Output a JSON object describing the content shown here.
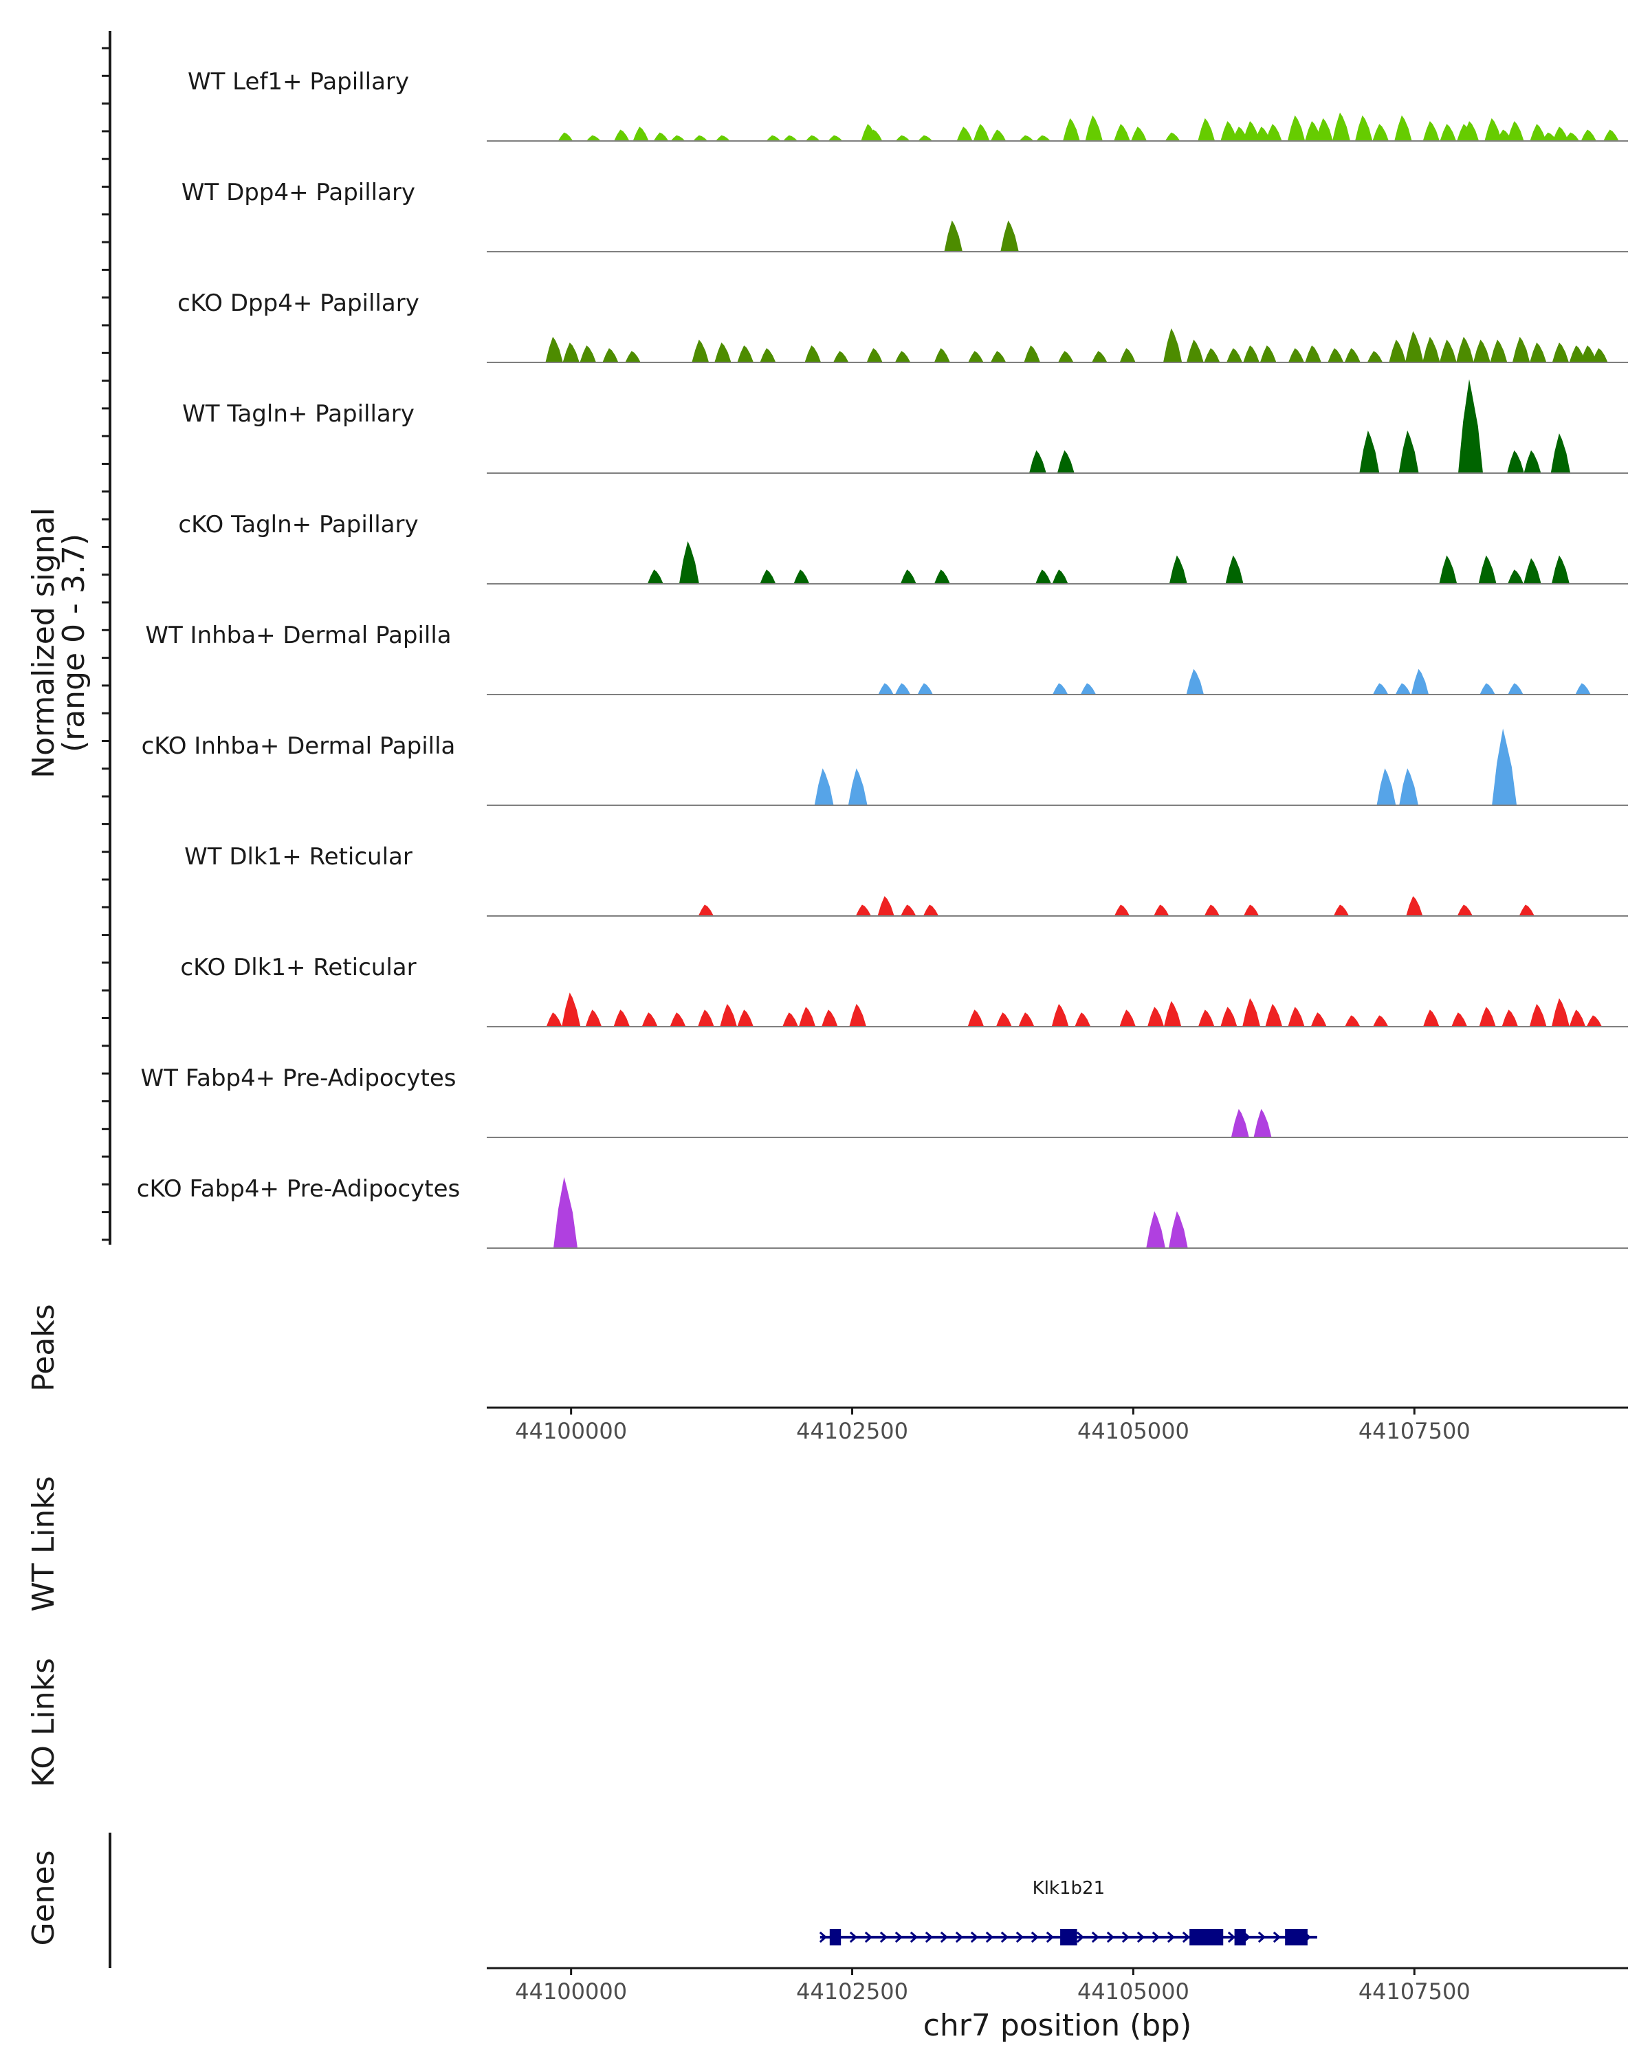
{
  "chart_data": {
    "type": "area",
    "title": "",
    "ylabel": "Normalized signal",
    "ylabel_range": "(range 0 - 3.7)",
    "ymax": 3.7,
    "xlabel": "chr7 position (bp)",
    "xlim": [
      44099250,
      44109400
    ],
    "xticks": [
      {
        "value": 44100000,
        "label": "44100000"
      },
      {
        "value": 44102500,
        "label": "44102500"
      },
      {
        "value": 44105000,
        "label": "44105000"
      },
      {
        "value": 44107500,
        "label": "44107500"
      }
    ],
    "tracks": [
      {
        "name": "WT Lef1+ Papillary",
        "color": "#66cc00",
        "peaks": [
          [
            44099950,
            0.3
          ],
          [
            44100200,
            0.2
          ],
          [
            44100450,
            0.4
          ],
          [
            44100620,
            0.5
          ],
          [
            44100800,
            0.3
          ],
          [
            44100950,
            0.2
          ],
          [
            44101150,
            0.2
          ],
          [
            44101350,
            0.2
          ],
          [
            44101800,
            0.2
          ],
          [
            44101950,
            0.2
          ],
          [
            44102150,
            0.2
          ],
          [
            44102350,
            0.2
          ],
          [
            44102650,
            0.6
          ],
          [
            44102700,
            0.4
          ],
          [
            44102950,
            0.2
          ],
          [
            44103150,
            0.2
          ],
          [
            44103500,
            0.5
          ],
          [
            44103650,
            0.6
          ],
          [
            44103800,
            0.4
          ],
          [
            44104050,
            0.2
          ],
          [
            44104200,
            0.2
          ],
          [
            44104450,
            0.8
          ],
          [
            44104650,
            0.9
          ],
          [
            44104900,
            0.6
          ],
          [
            44105050,
            0.5
          ],
          [
            44105350,
            0.3
          ],
          [
            44105650,
            0.8
          ],
          [
            44105850,
            0.7
          ],
          [
            44106050,
            0.7
          ],
          [
            44106250,
            0.6
          ],
          [
            44106450,
            0.9
          ],
          [
            44106700,
            0.8
          ],
          [
            44106850,
            1.0
          ],
          [
            44107050,
            0.9
          ],
          [
            44107200,
            0.6
          ],
          [
            44107400,
            0.9
          ],
          [
            44107650,
            0.7
          ],
          [
            44107800,
            0.6
          ],
          [
            44108000,
            0.7
          ],
          [
            44108200,
            0.8
          ],
          [
            44108400,
            0.7
          ],
          [
            44108600,
            0.6
          ],
          [
            44108800,
            0.5
          ],
          [
            44109050,
            0.4
          ],
          [
            44109250,
            0.4
          ],
          [
            44105950,
            0.5
          ],
          [
            44106150,
            0.5
          ],
          [
            44106600,
            0.7
          ],
          [
            44107950,
            0.6
          ],
          [
            44108300,
            0.4
          ],
          [
            44108700,
            0.3
          ],
          [
            44108900,
            0.3
          ]
        ]
      },
      {
        "name": "WT Dpp4+ Papillary",
        "color": "#4d8c00",
        "peaks": [
          [
            44103400,
            1.1
          ],
          [
            44103900,
            1.1
          ]
        ]
      },
      {
        "name": "cKO Dpp4+ Papillary",
        "color": "#4d8c00",
        "peaks": [
          [
            44099850,
            0.9
          ],
          [
            44100000,
            0.7
          ],
          [
            44100150,
            0.6
          ],
          [
            44100350,
            0.5
          ],
          [
            44100550,
            0.4
          ],
          [
            44101150,
            0.8
          ],
          [
            44101350,
            0.7
          ],
          [
            44101550,
            0.6
          ],
          [
            44101750,
            0.5
          ],
          [
            44102150,
            0.6
          ],
          [
            44102400,
            0.4
          ],
          [
            44102700,
            0.5
          ],
          [
            44102950,
            0.4
          ],
          [
            44103300,
            0.5
          ],
          [
            44103600,
            0.4
          ],
          [
            44103800,
            0.4
          ],
          [
            44104100,
            0.6
          ],
          [
            44104400,
            0.4
          ],
          [
            44104700,
            0.4
          ],
          [
            44104950,
            0.5
          ],
          [
            44105350,
            1.2
          ],
          [
            44105550,
            0.8
          ],
          [
            44105700,
            0.5
          ],
          [
            44105900,
            0.5
          ],
          [
            44106050,
            0.6
          ],
          [
            44106200,
            0.6
          ],
          [
            44106450,
            0.5
          ],
          [
            44106600,
            0.6
          ],
          [
            44106800,
            0.5
          ],
          [
            44106950,
            0.5
          ],
          [
            44107150,
            0.4
          ],
          [
            44107350,
            0.8
          ],
          [
            44107500,
            1.1
          ],
          [
            44107650,
            0.9
          ],
          [
            44107800,
            0.8
          ],
          [
            44107950,
            0.9
          ],
          [
            44108100,
            0.8
          ],
          [
            44108250,
            0.8
          ],
          [
            44108450,
            0.9
          ],
          [
            44108600,
            0.7
          ],
          [
            44108800,
            0.7
          ],
          [
            44108950,
            0.6
          ],
          [
            44109050,
            0.6
          ],
          [
            44109150,
            0.5
          ]
        ]
      },
      {
        "name": "WT Tagln+ Papillary",
        "color": "#006400",
        "peaks": [
          [
            44104150,
            0.8
          ],
          [
            44104400,
            0.8
          ],
          [
            44107100,
            1.5
          ],
          [
            44107450,
            1.5
          ],
          [
            44108000,
            3.3
          ],
          [
            44108400,
            0.8
          ],
          [
            44108550,
            0.8
          ],
          [
            44108800,
            1.4
          ]
        ]
      },
      {
        "name": "cKO Tagln+ Papillary",
        "color": "#006400",
        "peaks": [
          [
            44100750,
            0.5
          ],
          [
            44101050,
            1.5
          ],
          [
            44101750,
            0.5
          ],
          [
            44102050,
            0.5
          ],
          [
            44103000,
            0.5
          ],
          [
            44103300,
            0.5
          ],
          [
            44104200,
            0.5
          ],
          [
            44104350,
            0.5
          ],
          [
            44105400,
            1.0
          ],
          [
            44105900,
            1.0
          ],
          [
            44107800,
            1.0
          ],
          [
            44108150,
            1.0
          ],
          [
            44108400,
            0.5
          ],
          [
            44108550,
            0.9
          ],
          [
            44108800,
            1.0
          ]
        ]
      },
      {
        "name": "WT Inhba+ Dermal Papilla",
        "color": "#56a4e8",
        "peaks": [
          [
            44102800,
            0.4
          ],
          [
            44102950,
            0.4
          ],
          [
            44103150,
            0.4
          ],
          [
            44104350,
            0.4
          ],
          [
            44104600,
            0.4
          ],
          [
            44105550,
            0.9
          ],
          [
            44107200,
            0.4
          ],
          [
            44107400,
            0.4
          ],
          [
            44107550,
            0.9
          ],
          [
            44108150,
            0.4
          ],
          [
            44108400,
            0.4
          ],
          [
            44109000,
            0.4
          ]
        ]
      },
      {
        "name": "cKO Inhba+ Dermal Papilla",
        "color": "#56a4e8",
        "peaks": [
          [
            44102250,
            1.3
          ],
          [
            44102550,
            1.3
          ],
          [
            44107250,
            1.3
          ],
          [
            44107450,
            1.3
          ],
          [
            44108300,
            2.7
          ]
        ]
      },
      {
        "name": "WT Dlk1+ Reticular",
        "color": "#ee2222",
        "peaks": [
          [
            44101200,
            0.4
          ],
          [
            44102600,
            0.4
          ],
          [
            44102800,
            0.7
          ],
          [
            44103000,
            0.4
          ],
          [
            44103200,
            0.4
          ],
          [
            44104900,
            0.4
          ],
          [
            44105250,
            0.4
          ],
          [
            44105700,
            0.4
          ],
          [
            44106050,
            0.4
          ],
          [
            44106850,
            0.4
          ],
          [
            44107500,
            0.7
          ],
          [
            44107950,
            0.4
          ],
          [
            44108500,
            0.4
          ]
        ]
      },
      {
        "name": "cKO Dlk1+ Reticular",
        "color": "#ee2222",
        "peaks": [
          [
            44099850,
            0.5
          ],
          [
            44100000,
            1.2
          ],
          [
            44100200,
            0.6
          ],
          [
            44100450,
            0.6
          ],
          [
            44100700,
            0.5
          ],
          [
            44100950,
            0.5
          ],
          [
            44101200,
            0.6
          ],
          [
            44101400,
            0.8
          ],
          [
            44101550,
            0.6
          ],
          [
            44101950,
            0.5
          ],
          [
            44102100,
            0.7
          ],
          [
            44102300,
            0.6
          ],
          [
            44102550,
            0.8
          ],
          [
            44103600,
            0.6
          ],
          [
            44103850,
            0.5
          ],
          [
            44104050,
            0.5
          ],
          [
            44104350,
            0.8
          ],
          [
            44104550,
            0.5
          ],
          [
            44104950,
            0.6
          ],
          [
            44105200,
            0.7
          ],
          [
            44105350,
            0.9
          ],
          [
            44105650,
            0.6
          ],
          [
            44105850,
            0.7
          ],
          [
            44106050,
            1.0
          ],
          [
            44106250,
            0.8
          ],
          [
            44106450,
            0.7
          ],
          [
            44106650,
            0.5
          ],
          [
            44106950,
            0.4
          ],
          [
            44107200,
            0.4
          ],
          [
            44107650,
            0.6
          ],
          [
            44107900,
            0.5
          ],
          [
            44108150,
            0.7
          ],
          [
            44108350,
            0.6
          ],
          [
            44108600,
            0.8
          ],
          [
            44108800,
            1.0
          ],
          [
            44108950,
            0.6
          ],
          [
            44109100,
            0.4
          ]
        ]
      },
      {
        "name": "WT Fabp4+ Pre-Adipocytes",
        "color": "#b040e0",
        "peaks": [
          [
            44105950,
            1.0
          ],
          [
            44106150,
            1.0
          ]
        ]
      },
      {
        "name": "cKO Fabp4+ Pre-Adipocytes",
        "color": "#b040e0",
        "peaks": [
          [
            44099950,
            2.5
          ],
          [
            44105200,
            1.3
          ],
          [
            44105400,
            1.3
          ]
        ]
      }
    ],
    "side_labels": {
      "peaks": "Peaks",
      "wt_links": "WT Links",
      "ko_links": "KO Links",
      "genes": "Genes"
    },
    "gene": {
      "name": "Klk1b21",
      "start": 44102300,
      "end": 44106550,
      "strand": "+",
      "color": "#000080",
      "exons": [
        [
          44102300,
          44102400
        ],
        [
          44104350,
          44104500
        ],
        [
          44105500,
          44105800
        ],
        [
          44105900,
          44106000
        ],
        [
          44106350,
          44106550
        ]
      ]
    }
  }
}
